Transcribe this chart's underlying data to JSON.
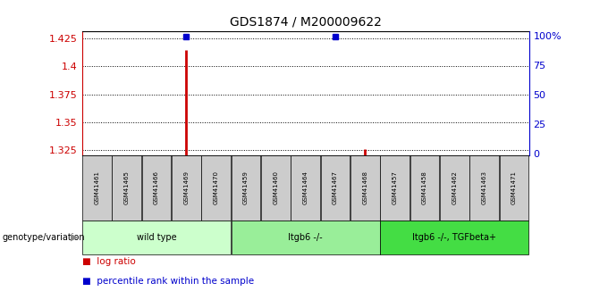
{
  "title": "GDS1874 / M200009622",
  "samples": [
    "GSM41461",
    "GSM41465",
    "GSM41466",
    "GSM41469",
    "GSM41470",
    "GSM41459",
    "GSM41460",
    "GSM41464",
    "GSM41467",
    "GSM41468",
    "GSM41457",
    "GSM41458",
    "GSM41462",
    "GSM41463",
    "GSM41471"
  ],
  "groups": [
    {
      "name": "wild type",
      "indices": [
        0,
        1,
        2,
        3,
        4
      ],
      "color": "#ccffcc"
    },
    {
      "name": "Itgb6 -/-",
      "indices": [
        5,
        6,
        7,
        8,
        9
      ],
      "color": "#99ee99"
    },
    {
      "name": "Itgb6 -/-, TGFbeta+",
      "indices": [
        10,
        11,
        12,
        13,
        14
      ],
      "color": "#44dd44"
    }
  ],
  "log_ratio_values": [
    null,
    null,
    null,
    1.415,
    null,
    null,
    null,
    null,
    null,
    1.326,
    null,
    null,
    null,
    null,
    null
  ],
  "log_ratio_color": "#cc0000",
  "percentile_rank_values": [
    null,
    null,
    null,
    99.0,
    null,
    null,
    null,
    null,
    99.0,
    null,
    null,
    null,
    null,
    null,
    null
  ],
  "percentile_rank_color": "#0000cc",
  "ylim_left": [
    1.32,
    1.432
  ],
  "yticks_left": [
    1.325,
    1.35,
    1.375,
    1.4,
    1.425
  ],
  "ytick_left_labels": [
    "1.325",
    "1.35",
    "1.375",
    "1.4",
    "1.425"
  ],
  "yticks_right": [
    0,
    25,
    50,
    75,
    100
  ],
  "ytick_right_labels": [
    "0",
    "25",
    "50",
    "75",
    "100%"
  ],
  "ylim_right": [
    -1.5,
    104.0
  ],
  "left_axis_color": "#cc0000",
  "right_axis_color": "#0000cc",
  "background_color": "#ffffff",
  "grid_color": "#000000",
  "sample_box_color": "#cccccc",
  "legend_log_ratio_label": "log ratio",
  "legend_percentile_label": "percentile rank within the sample",
  "genotype_label": "genotype/variation"
}
